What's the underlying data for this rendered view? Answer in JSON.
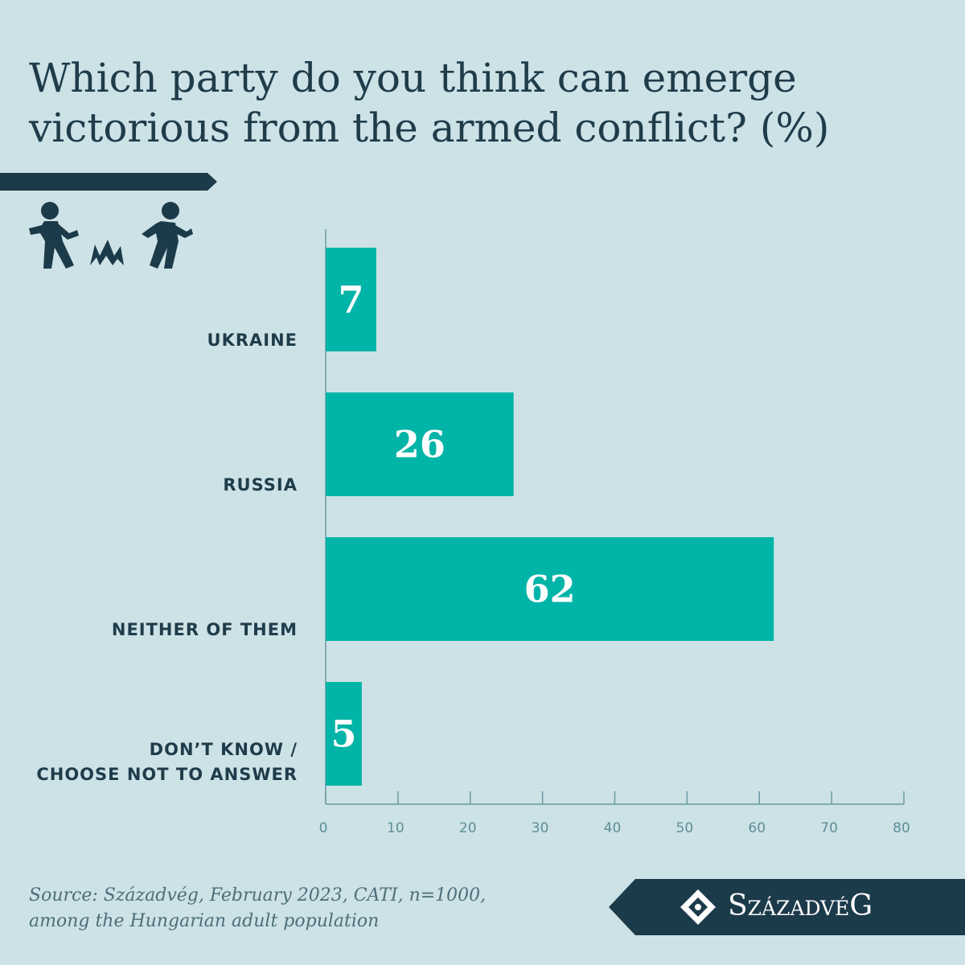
{
  "chart_data": {
    "type": "bar",
    "orientation": "horizontal",
    "title": "Which party do you think can emerge victorious from the armed conflict? (%)",
    "categories": [
      "UKRAINE",
      "RUSSIA",
      "NEITHER OF THEM",
      "DON’T KNOW /\nCHOOSE NOT TO ANSWER"
    ],
    "values": [
      7,
      26,
      62,
      5
    ],
    "color": "#00b4a7",
    "xlim": [
      0,
      80
    ],
    "xticks": [
      0,
      10,
      20,
      30,
      40,
      50,
      60,
      70,
      80
    ],
    "source": "Source: Századvég, February 2023, CATI, n=1000,\namong the Hungarian adult population",
    "logo": "SzázadvéG"
  }
}
